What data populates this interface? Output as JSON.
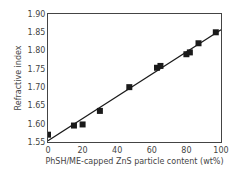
{
  "chart_data": {
    "type": "scatter",
    "xlabel": "PhSH/ME-capped ZnS particle content (wt%)",
    "ylabel": "Refractive index",
    "x": [
      0,
      15,
      20,
      30,
      47,
      63,
      65,
      80,
      82,
      87,
      97
    ],
    "series": [
      {
        "type": "line",
        "color": "#1a1a1a",
        "line_style": "solid",
        "x": [
          0,
          100
        ],
        "values": [
          1.5534,
          1.8566
        ]
      },
      {
        "type": "scatter",
        "color": "#1a1a1a",
        "marker": "square",
        "values": [
          1.57,
          1.595,
          1.598,
          1.635,
          1.7,
          1.753,
          1.758,
          1.79,
          1.795,
          1.82,
          1.85
        ]
      }
    ],
    "xlim": [
      0,
      100
    ],
    "ylim": [
      1.55,
      1.9
    ],
    "xticks": [
      0,
      20,
      40,
      60,
      80,
      100
    ],
    "yticks": [
      1.55,
      {
        "value": 1.6,
        "label": "1.60"
      },
      1.65,
      {
        "value": 1.7,
        "label": "1.70"
      },
      1.75,
      {
        "value": 1.8,
        "label": "1.80"
      },
      1.85,
      {
        "value": 1.9,
        "label": "1.90"
      }
    ],
    "grid": false
  }
}
